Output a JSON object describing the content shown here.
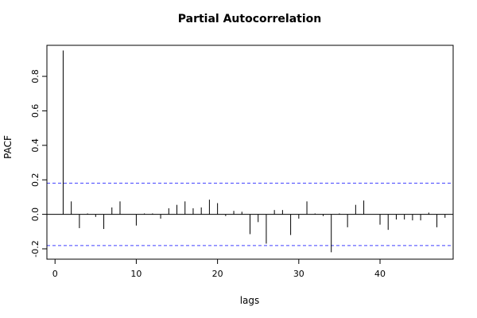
{
  "chart_data": {
    "type": "bar",
    "title": "Partial Autocorrelation",
    "xlabel": "lags",
    "ylabel": "PACF",
    "xlim": [
      -1,
      49
    ],
    "ylim": [
      -0.26,
      0.98
    ],
    "xticks": [
      0,
      10,
      20,
      30,
      40
    ],
    "xtick_labels": [
      "0",
      "10",
      "20",
      "30",
      "40"
    ],
    "yticks": [
      -0.2,
      0.0,
      0.2,
      0.4,
      0.6,
      0.8
    ],
    "ytick_labels": [
      "-0.2",
      "0.0",
      "0.2",
      "0.4",
      "0.6",
      "0.8"
    ],
    "confidence_limits": [
      0.181,
      -0.181
    ],
    "grid": false,
    "colors": {
      "bars": "#000000",
      "confidence": "#4040ff",
      "zero_line": "#000000",
      "frame": "#000000"
    },
    "lags": [
      1,
      2,
      3,
      4,
      5,
      6,
      7,
      8,
      9,
      10,
      11,
      12,
      13,
      14,
      15,
      16,
      17,
      18,
      19,
      20,
      21,
      22,
      23,
      24,
      25,
      26,
      27,
      28,
      29,
      30,
      31,
      32,
      33,
      34,
      35,
      36,
      37,
      38,
      39,
      40,
      41,
      42,
      43,
      44,
      45,
      46,
      47,
      48
    ],
    "values": [
      0.95,
      0.075,
      -0.08,
      0.005,
      -0.015,
      -0.085,
      0.04,
      0.075,
      0.0,
      -0.065,
      0.005,
      0.005,
      -0.025,
      0.035,
      0.055,
      0.075,
      0.035,
      0.04,
      0.085,
      0.065,
      -0.01,
      0.02,
      0.015,
      -0.115,
      -0.045,
      -0.17,
      0.025,
      0.025,
      -0.12,
      -0.025,
      0.075,
      0.005,
      -0.01,
      -0.22,
      0.005,
      -0.075,
      0.055,
      0.08,
      0.0,
      -0.06,
      -0.09,
      -0.03,
      -0.03,
      -0.035,
      -0.035,
      0.01,
      -0.075,
      -0.02
    ]
  }
}
